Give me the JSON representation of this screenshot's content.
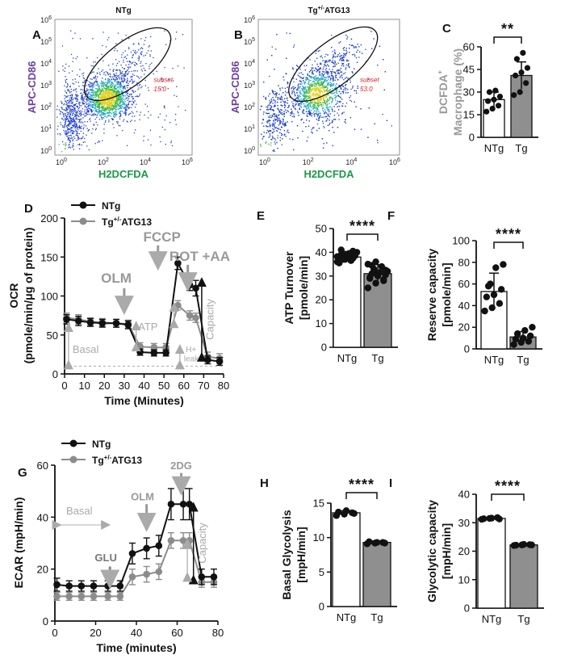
{
  "panel_labels": [
    "A",
    "B",
    "C",
    "D",
    "E",
    "F",
    "G",
    "H",
    "I"
  ],
  "colors": {
    "ntg": "#111111",
    "tg": "#8c8c8c",
    "annot_gray": "#a8a8a8",
    "flow_purple": "#6b3fa0",
    "flow_green": "#1a9a45",
    "gate": "#111111",
    "subset_red": "#e02020"
  },
  "chart_data": [
    {
      "id": "A",
      "type": "scatter",
      "kind": "flow-cytometry",
      "title": "NTg",
      "xlabel": "H2DCFDA",
      "ylabel": "APC-CD86",
      "x_ticks": [
        "10^0",
        "10^2",
        "10^4",
        "10^6"
      ],
      "y_ticks": [
        "10^0",
        "10^1",
        "10^2",
        "10^3",
        "10^4",
        "10^5",
        "10^6"
      ],
      "gate": {
        "label": "subset",
        "value": "15.0"
      }
    },
    {
      "id": "B",
      "type": "scatter",
      "kind": "flow-cytometry",
      "title": "Tg+/-ATG13",
      "title_main": "Tg",
      "title_sup": "+/-",
      "title_rest": "ATG13",
      "xlabel": "H2DCFDA",
      "ylabel": "APC-CD86",
      "x_ticks": [
        "10^0",
        "10^2",
        "10^4",
        "10^6"
      ],
      "y_ticks": [
        "10^0",
        "10^1",
        "10^2",
        "10^3",
        "10^4",
        "10^5",
        "10^6"
      ],
      "gate": {
        "label": "subset",
        "value": "53.0"
      }
    },
    {
      "id": "C",
      "type": "bar",
      "categories": [
        "NTg",
        "Tg"
      ],
      "values": [
        25,
        41
      ],
      "errors": [
        5,
        9
      ],
      "points": [
        [
          17,
          19,
          21,
          24,
          25,
          27,
          30,
          31
        ],
        [
          28,
          30,
          36,
          41,
          43,
          46,
          52,
          56
        ]
      ],
      "ylabel": "DCFDA+ Macrophage (%)",
      "ylim": [
        0,
        60
      ],
      "yticks": [
        0,
        15,
        30,
        45,
        60
      ],
      "significance": "**"
    },
    {
      "id": "D",
      "type": "line",
      "xlabel": "Time (Minutes)",
      "ylabel": "OCR (pmole/min/μg of protein)",
      "xlim": [
        0,
        80
      ],
      "ylim": [
        0,
        200
      ],
      "xticks": [
        0,
        10,
        20,
        30,
        40,
        50,
        60,
        70,
        80
      ],
      "yticks": [
        0,
        50,
        100,
        150,
        200
      ],
      "x": [
        1,
        7,
        13,
        19,
        26,
        32,
        38,
        45,
        51,
        57,
        63,
        66,
        72,
        78
      ],
      "series": [
        {
          "name": "NTg",
          "values": [
            70,
            68,
            66,
            65,
            65,
            63,
            28,
            27,
            27,
            142,
            114,
            110,
            18,
            16
          ],
          "errors": [
            6,
            6,
            5,
            5,
            5,
            5,
            4,
            4,
            4,
            8,
            7,
            10,
            5,
            5
          ]
        },
        {
          "name": "Tg+/-ATG13",
          "values": [
            72,
            70,
            67,
            66,
            65,
            64,
            35,
            34,
            34,
            88,
            75,
            72,
            22,
            20
          ],
          "errors": [
            6,
            6,
            5,
            5,
            5,
            5,
            5,
            5,
            5,
            6,
            6,
            6,
            6,
            6
          ]
        }
      ],
      "injections": [
        "OLM",
        "FCCP",
        "ROT +AA"
      ],
      "annotations": [
        "ATP",
        "Basal",
        "H+ leak",
        "Capacity"
      ]
    },
    {
      "id": "E",
      "type": "bar",
      "categories": [
        "NTg",
        "Tg"
      ],
      "values": [
        38,
        31
      ],
      "errors": [
        1.8,
        3.8
      ],
      "points": [
        [
          36,
          37,
          37.5,
          38,
          38,
          38.5,
          39,
          39.5,
          40,
          37,
          36.5,
          38.2,
          39.2,
          40.5,
          35.5,
          37.8,
          38.8,
          41
        ],
        [
          25,
          27,
          28,
          29,
          30,
          30.5,
          31,
          31.5,
          32,
          33,
          34,
          35,
          36,
          28.5,
          29.5,
          31.2,
          32.5,
          34.5
        ]
      ],
      "ylabel": "ATP Turnover [pmole/min]",
      "ylim": [
        0,
        50
      ],
      "yticks": [
        0,
        10,
        20,
        30,
        40,
        50
      ],
      "significance": "****"
    },
    {
      "id": "F",
      "type": "bar",
      "categories": [
        "NTg",
        "Tg"
      ],
      "values": [
        53,
        11
      ],
      "errors": [
        17,
        5
      ],
      "points": [
        [
          35,
          38,
          42,
          48,
          50,
          55,
          58,
          75,
          78,
          60
        ],
        [
          4,
          6,
          7,
          9,
          10,
          12,
          14,
          17,
          20
        ]
      ],
      "ylabel": "Reserve capacity [pmole/min]",
      "ylim": [
        0,
        100
      ],
      "yticks": [
        0,
        20,
        40,
        60,
        80,
        100
      ],
      "significance": "****"
    },
    {
      "id": "G",
      "type": "line",
      "xlabel": "Time (minutes)",
      "ylabel": "ECAR (mpH/min)",
      "xlim": [
        0,
        80
      ],
      "ylim": [
        0,
        60
      ],
      "xticks": [
        0,
        20,
        40,
        60,
        80
      ],
      "yticks": [
        0,
        20,
        40,
        60
      ],
      "x": [
        1,
        7,
        13,
        19,
        26,
        32,
        38,
        45,
        51,
        57,
        63,
        66,
        72,
        78
      ],
      "series": [
        {
          "name": "NTg",
          "values": [
            14,
            13.5,
            13.5,
            13.5,
            13.5,
            13.5,
            26,
            28,
            29,
            45,
            45,
            45,
            17,
            17
          ],
          "errors": [
            2.5,
            2,
            2,
            2,
            2,
            2,
            4,
            4,
            4,
            6,
            6,
            6,
            3,
            3
          ]
        },
        {
          "name": "Tg+/-ATG13",
          "values": [
            9.5,
            9.5,
            9.5,
            9.5,
            9.5,
            9.5,
            17,
            18,
            19,
            31,
            31,
            31,
            15,
            15
          ],
          "errors": [
            1.5,
            1.5,
            1.5,
            1.5,
            1.5,
            1.5,
            3,
            3,
            3,
            3,
            3,
            3,
            2,
            2
          ]
        }
      ],
      "injections": [
        "GLU",
        "OLM",
        "2DG"
      ],
      "annotations": [
        "Basal",
        "Capacity"
      ]
    },
    {
      "id": "H",
      "type": "bar",
      "categories": [
        "NTg",
        "Tg"
      ],
      "values": [
        13.6,
        9.3
      ],
      "errors": [
        0.3,
        0.2
      ],
      "points": [
        [
          13.2,
          13.4,
          13.6,
          13.7,
          13.9,
          13.5
        ],
        [
          9.1,
          9.2,
          9.3,
          9.4,
          9.3,
          9.2
        ]
      ],
      "ylabel": "Basal Glycolysis [mpH/min]",
      "ylim": [
        0,
        15
      ],
      "yticks": [
        0,
        5,
        10,
        15
      ],
      "significance": "****"
    },
    {
      "id": "I",
      "type": "bar",
      "categories": [
        "NTg",
        "Tg"
      ],
      "values": [
        31.5,
        22.2
      ],
      "errors": [
        0.5,
        0.3
      ],
      "points": [
        [
          31.2,
          31.5,
          31.8,
          31.4,
          31.6,
          31.3
        ],
        [
          22.0,
          22.2,
          22.3,
          22.1,
          22.4,
          22.2
        ]
      ],
      "ylabel": "Glycolytic capacity [mpH/min]",
      "ylim": [
        0,
        40
      ],
      "yticks": [
        0,
        10,
        20,
        30,
        40
      ],
      "significance": "****"
    }
  ]
}
